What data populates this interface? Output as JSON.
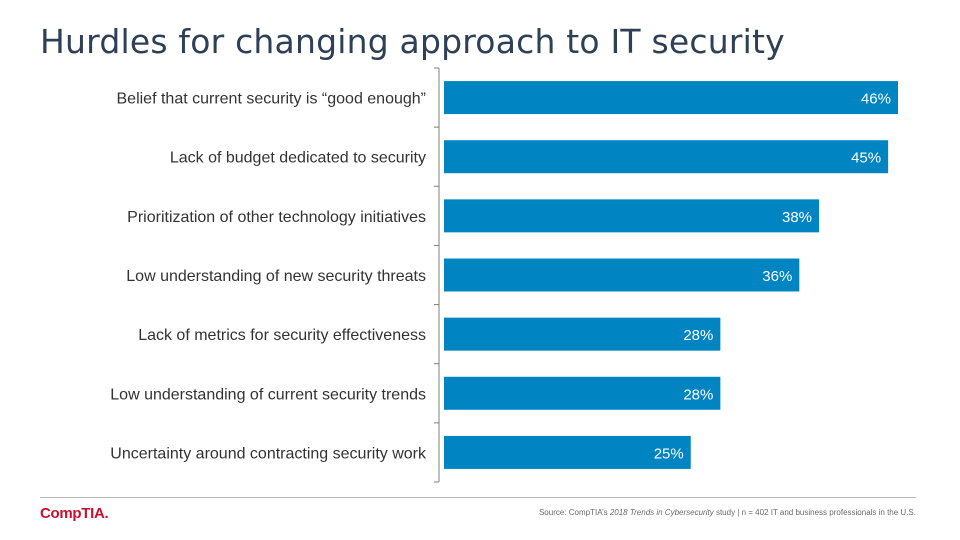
{
  "title": "Hurdles for changing approach to IT security",
  "footer": {
    "logo": "CompTIA.",
    "source_prefix": "Source: CompTIA’s ",
    "source_study": "2018 Trends in Cybersecurity",
    "source_suffix": " study | n = 402 IT and business professionals  in the U.S."
  },
  "colors": {
    "bar": "#0085c2",
    "axis": "#7f7f7f",
    "title": "#2d4056",
    "logo": "#c8102e"
  },
  "chart_data": {
    "type": "bar",
    "orientation": "horizontal",
    "categories": [
      "Belief that current security is “good enough”",
      "Lack of budget dedicated to security",
      "Prioritization of other technology initiatives",
      "Low understanding of new security threats",
      "Lack of metrics for security effectiveness",
      "Low understanding of current security trends",
      "Uncertainty around contracting security work"
    ],
    "values": [
      46,
      45,
      38,
      36,
      28,
      28,
      25
    ],
    "value_labels": [
      "46%",
      "45%",
      "38%",
      "36%",
      "28%",
      "28%",
      "25%"
    ],
    "xlim": [
      0,
      46
    ],
    "grid": false,
    "legend": "none"
  }
}
